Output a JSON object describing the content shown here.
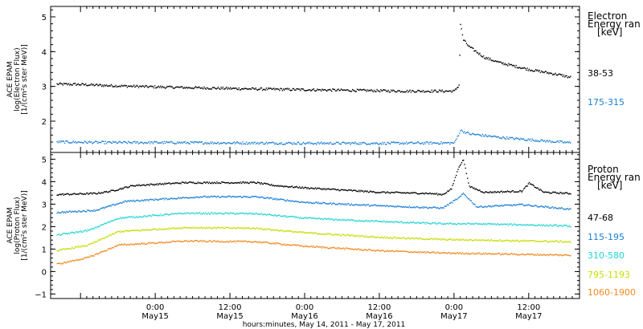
{
  "chart_data": [
    {
      "type": "scatter",
      "panel": "top",
      "ylabel": [
        "ACE EPAM",
        "log(Electron Flux)",
        "[1/(cm²s ster MeV)]"
      ],
      "ylim": [
        1.1,
        5.3
      ],
      "yticks": [
        2,
        3,
        4,
        5
      ],
      "legend_title": [
        "Electron",
        "Energy ran",
        "[keV]"
      ],
      "series": [
        {
          "name": "38-53",
          "color": "#000000",
          "points": [
            [
              -0.66,
              3.08
            ],
            [
              -0.5,
              3.07
            ],
            [
              -0.33,
              3.04
            ],
            [
              0,
              3.0
            ],
            [
              0.33,
              2.97
            ],
            [
              0.67,
              2.94
            ],
            [
              1.0,
              2.92
            ],
            [
              1.33,
              2.9
            ],
            [
              1.67,
              2.88
            ],
            [
              2.0,
              2.88
            ],
            [
              2.03,
              3.05
            ],
            [
              2.04,
              4.8
            ],
            [
              2.06,
              4.35
            ],
            [
              2.1,
              4.15
            ],
            [
              2.15,
              4.0
            ],
            [
              2.2,
              3.85
            ],
            [
              2.3,
              3.7
            ],
            [
              2.5,
              3.5
            ],
            [
              2.7,
              3.35
            ],
            [
              2.75,
              3.3
            ],
            [
              2.77,
              3.28
            ],
            [
              3.0,
              3.24
            ],
            [
              3.33,
              3.12
            ],
            [
              3.67,
              3.0
            ],
            [
              3.92,
              2.92
            ],
            [
              4.0,
              2.9
            ],
            [
              4.3,
              2.85
            ],
            [
              4.5,
              2.83
            ],
            [
              4.51,
              2.9
            ],
            [
              4.6,
              2.87
            ],
            [
              4.75,
              2.8
            ]
          ],
          "gaps": [
            [
              2.78,
              2.92
            ],
            [
              4.35,
              4.48
            ]
          ]
        },
        {
          "name": "175-315",
          "color": "#1a7fd6",
          "points": [
            [
              -0.66,
              1.42
            ],
            [
              -0.33,
              1.4
            ],
            [
              0,
              1.4
            ],
            [
              0.5,
              1.39
            ],
            [
              1.0,
              1.38
            ],
            [
              1.5,
              1.38
            ],
            [
              2.0,
              1.39
            ],
            [
              2.04,
              1.75
            ],
            [
              2.1,
              1.65
            ],
            [
              2.3,
              1.55
            ],
            [
              2.5,
              1.48
            ],
            [
              2.75,
              1.4
            ],
            [
              3.0,
              1.38
            ],
            [
              3.5,
              1.37
            ],
            [
              4.0,
              1.36
            ],
            [
              4.3,
              1.35
            ],
            [
              4.5,
              1.38
            ],
            [
              4.75,
              1.35
            ]
          ],
          "gaps": [
            [
              2.78,
              2.92
            ],
            [
              4.35,
              4.48
            ]
          ]
        }
      ]
    },
    {
      "type": "scatter",
      "panel": "bottom",
      "ylabel": [
        "ACE EPAM",
        "log(Proton Flux)",
        "[1/(cm²s ster MeV)]"
      ],
      "ylim": [
        -1.2,
        5.3
      ],
      "yticks": [
        -1,
        0,
        1,
        2,
        3,
        4,
        5
      ],
      "xlabel": "hours:minutes, May 14, 2011 - May 17, 2011",
      "x_ticks": [
        {
          "x": 0,
          "label": "0:00",
          "sub": "May15"
        },
        {
          "x": 0.5,
          "label": "12:00",
          "sub": "May15"
        },
        {
          "x": 1,
          "label": "0:00",
          "sub": "May16"
        },
        {
          "x": 1.5,
          "label": "12:00",
          "sub": "May16"
        },
        {
          "x": 2,
          "label": "0:00",
          "sub": "May17"
        },
        {
          "x": 2.5,
          "label": "12:00",
          "sub": "May17"
        }
      ],
      "legend_title": [
        "Proton",
        "Energy ran",
        "[keV]"
      ],
      "series": [
        {
          "name": "47-68",
          "color": "#000000",
          "points": [
            [
              -0.66,
              3.45
            ],
            [
              -0.4,
              3.5
            ],
            [
              -0.3,
              3.6
            ],
            [
              -0.15,
              3.85
            ],
            [
              0.2,
              3.98
            ],
            [
              0.67,
              3.98
            ],
            [
              0.8,
              3.85
            ],
            [
              1.0,
              3.75
            ],
            [
              1.5,
              3.55
            ],
            [
              1.83,
              3.5
            ],
            [
              1.92,
              3.45
            ],
            [
              1.98,
              3.7
            ],
            [
              2.03,
              4.7
            ],
            [
              2.06,
              5.0
            ],
            [
              2.1,
              3.8
            ],
            [
              2.2,
              3.55
            ],
            [
              2.45,
              3.6
            ],
            [
              2.5,
              3.95
            ],
            [
              2.6,
              3.55
            ],
            [
              2.77,
              3.5
            ],
            [
              3.0,
              3.3
            ],
            [
              3.5,
              3.2
            ],
            [
              4.0,
              3.05
            ],
            [
              4.35,
              3.0
            ],
            [
              4.5,
              4.2
            ],
            [
              4.55,
              3.6
            ],
            [
              4.6,
              3.1
            ],
            [
              4.75,
              2.95
            ]
          ],
          "gaps": [
            [
              2.78,
              2.92
            ],
            [
              4.38,
              4.48
            ]
          ]
        },
        {
          "name": "115-195",
          "color": "#1a7fd6",
          "points": [
            [
              -0.66,
              2.65
            ],
            [
              -0.4,
              2.75
            ],
            [
              -0.2,
              3.15
            ],
            [
              0.3,
              3.35
            ],
            [
              0.67,
              3.35
            ],
            [
              1.0,
              3.1
            ],
            [
              1.5,
              2.95
            ],
            [
              1.92,
              2.85
            ],
            [
              2.03,
              3.3
            ],
            [
              2.06,
              3.5
            ],
            [
              2.15,
              2.9
            ],
            [
              2.45,
              3.0
            ],
            [
              2.77,
              2.8
            ],
            [
              3.0,
              2.6
            ],
            [
              3.5,
              2.4
            ],
            [
              4.0,
              2.05
            ],
            [
              4.35,
              1.9
            ],
            [
              4.5,
              3.3
            ],
            [
              4.6,
              2.3
            ],
            [
              4.75,
              1.5
            ]
          ],
          "gaps": [
            [
              2.78,
              2.92
            ],
            [
              4.38,
              4.48
            ]
          ]
        },
        {
          "name": "310-580",
          "color": "#22d3d3",
          "points": [
            [
              -0.66,
              1.65
            ],
            [
              -0.45,
              1.85
            ],
            [
              -0.25,
              2.4
            ],
            [
              0.2,
              2.62
            ],
            [
              0.67,
              2.6
            ],
            [
              1.0,
              2.4
            ],
            [
              1.5,
              2.25
            ],
            [
              1.92,
              2.15
            ],
            [
              2.1,
              2.15
            ],
            [
              2.5,
              2.1
            ],
            [
              2.77,
              2.05
            ],
            [
              3.0,
              1.45
            ],
            [
              3.5,
              1.25
            ],
            [
              4.0,
              0.95
            ],
            [
              4.35,
              0.75
            ],
            [
              4.5,
              1.4
            ],
            [
              4.6,
              1.0
            ],
            [
              4.75,
              0.65
            ]
          ],
          "gaps": [
            [
              2.78,
              2.92
            ],
            [
              4.38,
              4.48
            ]
          ]
        },
        {
          "name": "795-1193",
          "color": "#c8dc00",
          "points": [
            [
              -0.66,
              0.95
            ],
            [
              -0.45,
              1.2
            ],
            [
              -0.25,
              1.8
            ],
            [
              0.2,
              1.98
            ],
            [
              0.67,
              1.95
            ],
            [
              1.0,
              1.75
            ],
            [
              1.5,
              1.55
            ],
            [
              1.92,
              1.45
            ],
            [
              2.2,
              1.42
            ],
            [
              2.77,
              1.35
            ],
            [
              3.0,
              0.75
            ],
            [
              3.5,
              0.55
            ],
            [
              4.0,
              0.25
            ],
            [
              4.35,
              0.05
            ],
            [
              4.5,
              0.5
            ],
            [
              4.6,
              0.2
            ],
            [
              4.75,
              -0.1
            ]
          ],
          "gaps": [
            [
              2.78,
              2.92
            ],
            [
              4.38,
              4.48
            ]
          ]
        },
        {
          "name": "1060-1900",
          "color": "#f08a1e",
          "points": [
            [
              -0.66,
              0.35
            ],
            [
              -0.45,
              0.65
            ],
            [
              -0.25,
              1.2
            ],
            [
              0.2,
              1.38
            ],
            [
              0.67,
              1.35
            ],
            [
              1.0,
              1.15
            ],
            [
              1.5,
              0.95
            ],
            [
              1.92,
              0.85
            ],
            [
              2.2,
              0.82
            ],
            [
              2.77,
              0.75
            ],
            [
              3.0,
              0.3
            ],
            [
              3.5,
              0.0
            ],
            [
              4.0,
              -0.35
            ],
            [
              4.35,
              -0.55
            ],
            [
              4.5,
              -0.3
            ],
            [
              4.6,
              -0.6
            ],
            [
              4.75,
              -0.85
            ]
          ],
          "gaps": [
            [
              2.78,
              2.92
            ],
            [
              4.38,
              4.48
            ]
          ]
        }
      ]
    }
  ]
}
